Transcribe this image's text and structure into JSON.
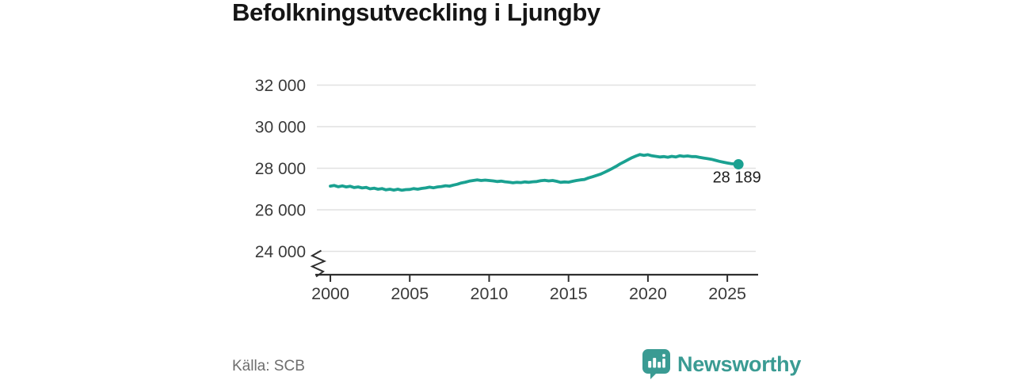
{
  "title": "Befolkningsutveckling i Ljungby",
  "source_note": "Källa: SCB",
  "branding": {
    "name": "Newsworthy"
  },
  "colors": {
    "line": "#1aa191",
    "logo": "#3a9b93",
    "grid": "#e1e1e1",
    "axis": "#2e2e2e",
    "tick_text": "#3a3a3a",
    "title_text": "#151515",
    "source_text": "#6e6e6e",
    "end_label_text": "#1d1d1d"
  },
  "chart_data": {
    "type": "line",
    "title": "Befolkningsutveckling i Ljungby",
    "xlabel": "",
    "ylabel": "",
    "grid": "horizontal",
    "axis_break_at_bottom": true,
    "x_ticks": [
      2000,
      2005,
      2010,
      2015,
      2020,
      2025
    ],
    "x_tick_labels": [
      "2000",
      "2005",
      "2010",
      "2015",
      "2020",
      "2025"
    ],
    "y_ticks": [
      24000,
      26000,
      28000,
      30000,
      32000
    ],
    "y_tick_labels": [
      "24 000",
      "26 000",
      "28 000",
      "30 000",
      "32 000"
    ],
    "xlim": [
      1999.15,
      2026.79
    ],
    "ylim": [
      24000,
      32000
    ],
    "end_point_label": "28 189",
    "end_point_value": 28189,
    "series": [
      {
        "color": "#1aa191",
        "points": [
          [
            2000.0,
            27140
          ],
          [
            2000.25,
            27170
          ],
          [
            2000.5,
            27110
          ],
          [
            2000.75,
            27150
          ],
          [
            2001.0,
            27100
          ],
          [
            2001.25,
            27130
          ],
          [
            2001.5,
            27070
          ],
          [
            2001.75,
            27100
          ],
          [
            2002.0,
            27050
          ],
          [
            2002.25,
            27080
          ],
          [
            2002.5,
            27010
          ],
          [
            2002.75,
            27040
          ],
          [
            2003.0,
            26990
          ],
          [
            2003.25,
            27020
          ],
          [
            2003.5,
            26960
          ],
          [
            2003.75,
            26990
          ],
          [
            2004.0,
            26950
          ],
          [
            2004.25,
            26990
          ],
          [
            2004.5,
            26940
          ],
          [
            2004.75,
            26970
          ],
          [
            2005.0,
            26980
          ],
          [
            2005.25,
            27020
          ],
          [
            2005.5,
            26990
          ],
          [
            2005.75,
            27030
          ],
          [
            2006.0,
            27050
          ],
          [
            2006.25,
            27090
          ],
          [
            2006.5,
            27060
          ],
          [
            2006.75,
            27100
          ],
          [
            2007.0,
            27120
          ],
          [
            2007.25,
            27160
          ],
          [
            2007.5,
            27140
          ],
          [
            2007.75,
            27190
          ],
          [
            2008.0,
            27230
          ],
          [
            2008.25,
            27290
          ],
          [
            2008.5,
            27330
          ],
          [
            2008.75,
            27380
          ],
          [
            2009.0,
            27410
          ],
          [
            2009.25,
            27440
          ],
          [
            2009.5,
            27410
          ],
          [
            2009.75,
            27430
          ],
          [
            2010.0,
            27410
          ],
          [
            2010.25,
            27390
          ],
          [
            2010.5,
            27360
          ],
          [
            2010.75,
            27380
          ],
          [
            2011.0,
            27350
          ],
          [
            2011.25,
            27330
          ],
          [
            2011.5,
            27300
          ],
          [
            2011.75,
            27320
          ],
          [
            2012.0,
            27310
          ],
          [
            2012.25,
            27340
          ],
          [
            2012.5,
            27320
          ],
          [
            2012.75,
            27350
          ],
          [
            2013.0,
            27360
          ],
          [
            2013.25,
            27400
          ],
          [
            2013.5,
            27420
          ],
          [
            2013.75,
            27390
          ],
          [
            2014.0,
            27410
          ],
          [
            2014.25,
            27370
          ],
          [
            2014.5,
            27320
          ],
          [
            2014.75,
            27340
          ],
          [
            2015.0,
            27330
          ],
          [
            2015.25,
            27370
          ],
          [
            2015.5,
            27410
          ],
          [
            2015.75,
            27440
          ],
          [
            2016.0,
            27460
          ],
          [
            2016.25,
            27530
          ],
          [
            2016.5,
            27590
          ],
          [
            2016.75,
            27650
          ],
          [
            2017.0,
            27710
          ],
          [
            2017.25,
            27800
          ],
          [
            2017.5,
            27890
          ],
          [
            2017.75,
            27990
          ],
          [
            2018.0,
            28090
          ],
          [
            2018.25,
            28210
          ],
          [
            2018.5,
            28310
          ],
          [
            2018.75,
            28410
          ],
          [
            2019.0,
            28510
          ],
          [
            2019.25,
            28590
          ],
          [
            2019.5,
            28660
          ],
          [
            2019.75,
            28620
          ],
          [
            2020.0,
            28650
          ],
          [
            2020.25,
            28600
          ],
          [
            2020.5,
            28570
          ],
          [
            2020.75,
            28540
          ],
          [
            2021.0,
            28560
          ],
          [
            2021.25,
            28530
          ],
          [
            2021.5,
            28570
          ],
          [
            2021.75,
            28540
          ],
          [
            2022.0,
            28600
          ],
          [
            2022.25,
            28570
          ],
          [
            2022.5,
            28590
          ],
          [
            2022.75,
            28560
          ],
          [
            2023.0,
            28560
          ],
          [
            2023.25,
            28520
          ],
          [
            2023.5,
            28490
          ],
          [
            2023.75,
            28460
          ],
          [
            2024.0,
            28430
          ],
          [
            2024.25,
            28380
          ],
          [
            2024.5,
            28330
          ],
          [
            2024.75,
            28290
          ],
          [
            2025.0,
            28250
          ],
          [
            2025.25,
            28220
          ],
          [
            2025.5,
            28200
          ],
          [
            2025.7,
            28189
          ]
        ]
      }
    ]
  }
}
